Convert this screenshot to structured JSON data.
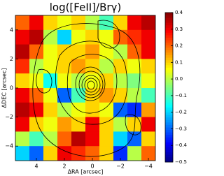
{
  "chart_data": {
    "type": "heatmap",
    "title": "log([FeII]/Brγ)",
    "x_label": "ΔRA [arcsec]",
    "y_label": "ΔDEC [arcsec]",
    "colormap": "jet",
    "xlim": [
      5.5,
      -4.5
    ],
    "ylim": [
      -5,
      5
    ],
    "xticks": [
      4,
      2,
      0,
      {
        "value": -2,
        "label": "−2"
      },
      {
        "value": -4,
        "label": "−4"
      }
    ],
    "yticks": [
      {
        "value": -4,
        "label": "−4"
      },
      {
        "value": -2,
        "label": "−2"
      },
      0,
      2,
      4
    ],
    "clim": [
      -0.5,
      0.4
    ],
    "cticks": [
      {
        "value": -0.5,
        "label": "−0.5"
      },
      {
        "value": -0.4,
        "label": "−0.4"
      },
      {
        "value": -0.3,
        "label": "−0.3"
      },
      {
        "value": -0.2,
        "label": "−0.2"
      },
      {
        "value": -0.1,
        "label": "−0.1"
      },
      {
        "value": 0.0,
        "label": "0.0"
      },
      0.1,
      0.2,
      0.3,
      0.4
    ],
    "z": [
      [
        0.2,
        0.3,
        0.1,
        0.05,
        0.1,
        0.0,
        -0.1,
        0.1,
        0.3,
        0.35
      ],
      [
        0.3,
        0.35,
        0.0,
        -0.2,
        0.05,
        0.1,
        0.05,
        0.2,
        0.25,
        0.3
      ],
      [
        0.35,
        0.2,
        0.05,
        0.1,
        0.1,
        0.15,
        0.05,
        0.0,
        0.2,
        0.3
      ],
      [
        0.25,
        0.0,
        0.05,
        0.1,
        0.15,
        0.1,
        0.0,
        0.1,
        0.05,
        0.1
      ],
      [
        0.1,
        0.05,
        -0.15,
        0.05,
        0.0,
        0.05,
        0.1,
        0.0,
        -0.05,
        0.05
      ],
      [
        0.3,
        0.2,
        0.05,
        -0.3,
        -0.1,
        0.1,
        0.15,
        0.1,
        0.0,
        -0.1
      ],
      [
        0.35,
        0.3,
        0.1,
        0.0,
        0.05,
        0.1,
        0.05,
        -0.3,
        -0.35,
        0.15
      ],
      [
        0.3,
        0.1,
        0.05,
        0.15,
        0.1,
        0.3,
        0.1,
        0.0,
        0.1,
        0.3
      ],
      [
        0.0,
        -0.1,
        0.0,
        0.2,
        0.35,
        0.3,
        0.1,
        -0.2,
        -0.3,
        0.1
      ],
      [
        -0.2,
        -0.3,
        0.1,
        0.3,
        0.25,
        0.2,
        0.1,
        -0.35,
        0.0,
        0.2
      ]
    ]
  }
}
